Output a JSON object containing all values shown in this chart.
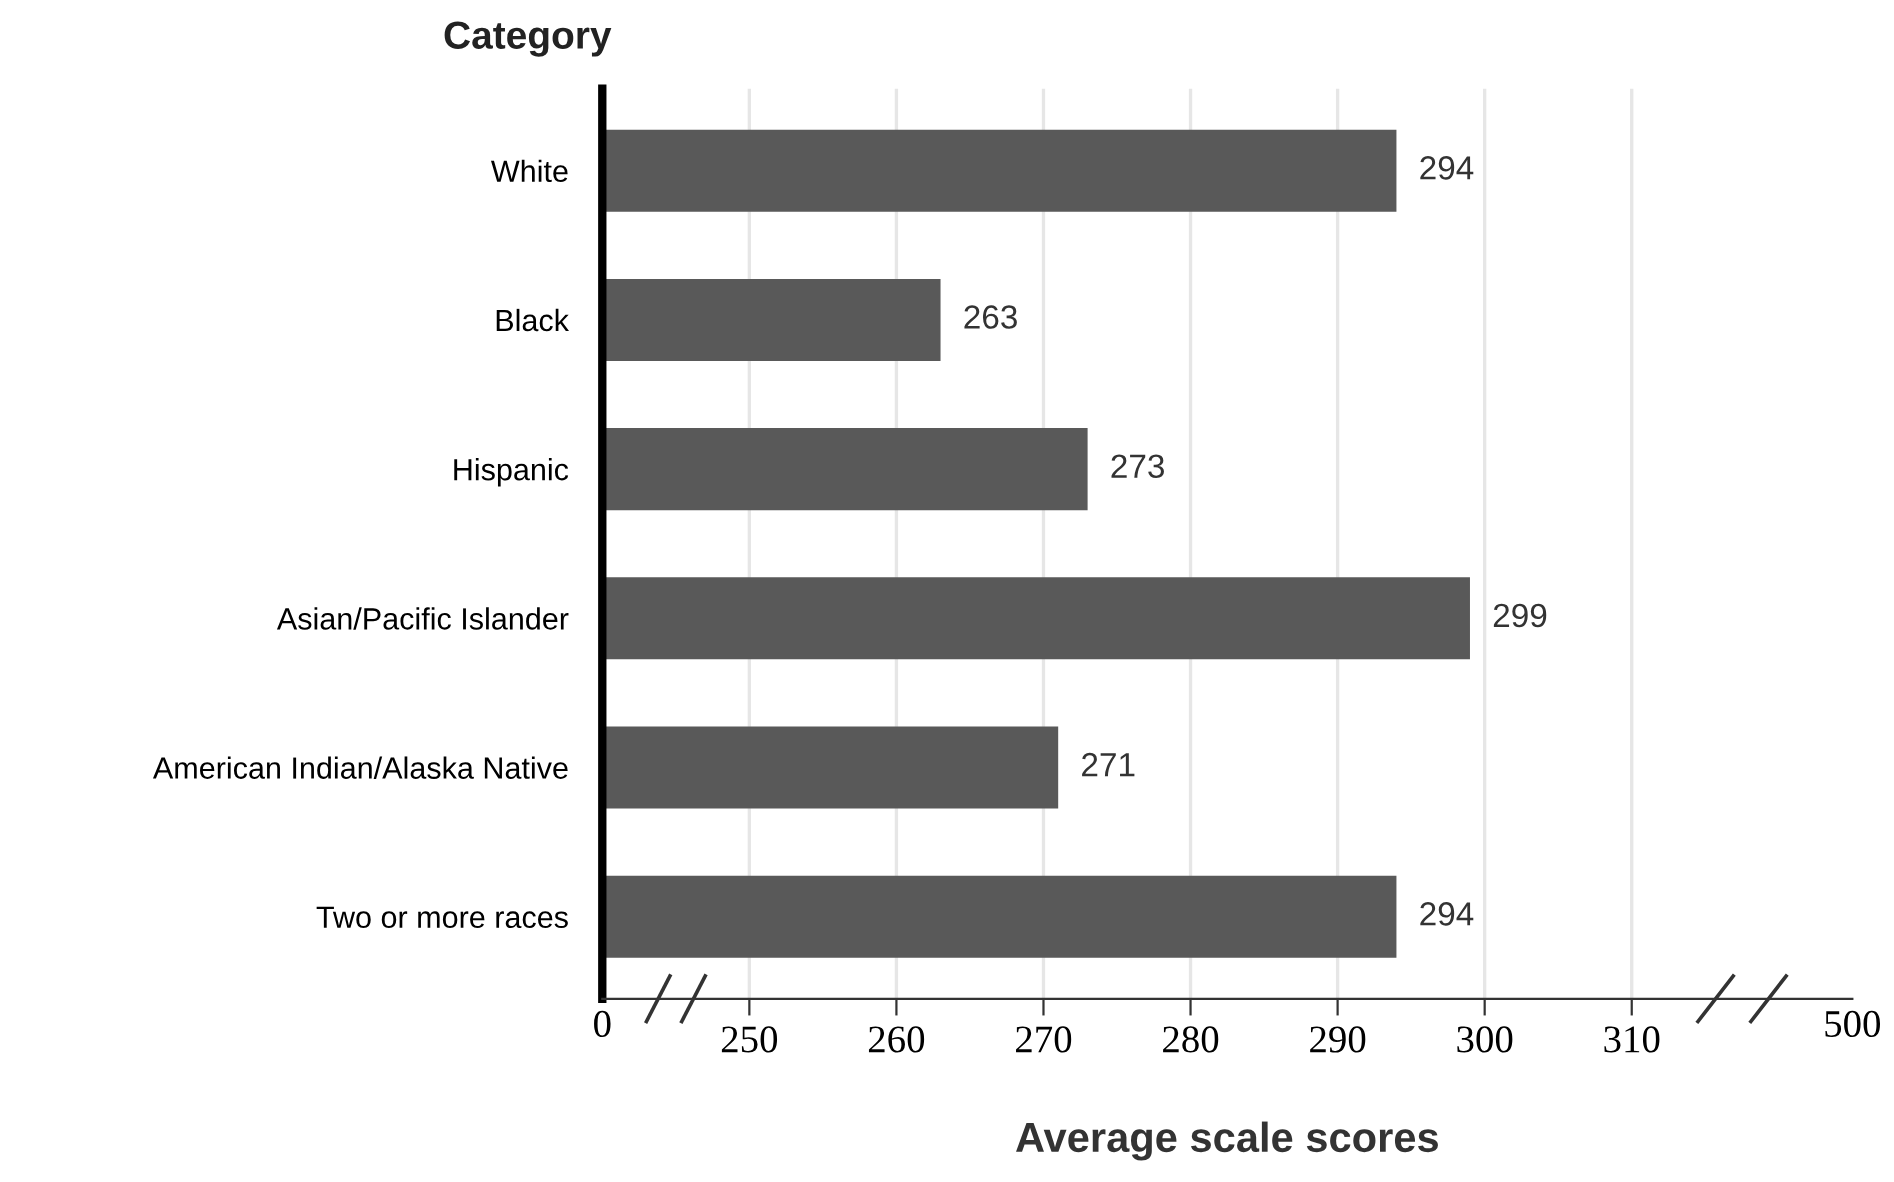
{
  "chart_data": {
    "type": "bar",
    "orientation": "horizontal",
    "ylabel": "Category",
    "xlabel": "Average scale scores",
    "categories": [
      "White",
      "Black",
      "Hispanic",
      "Asian/Pacific Islander",
      "American Indian/Alaska Native",
      "Two or more races"
    ],
    "values": [
      294,
      263,
      273,
      299,
      271,
      294
    ],
    "color": "#595959",
    "data_labels": true,
    "xlim": [
      240,
      325
    ],
    "xticks": [
      250,
      260,
      270,
      280,
      290,
      300,
      310
    ],
    "annotations": [
      "0",
      "500"
    ],
    "grid": "x"
  }
}
